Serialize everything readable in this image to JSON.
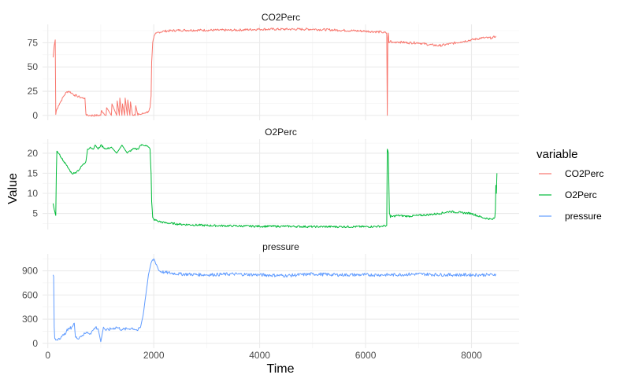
{
  "chart_data": {
    "type": "line",
    "facet": "vertical",
    "xlabel": "Time",
    "ylabel": "Value",
    "xlim": [
      -100,
      8900
    ],
    "x_ticks": [
      0,
      2000,
      4000,
      6000,
      8000
    ],
    "grid": true,
    "legend": {
      "title": "variable",
      "position": "right",
      "items": [
        {
          "label": "CO2Perc",
          "color": "#F8766D"
        },
        {
          "label": "O2Perc",
          "color": "#00BA38"
        },
        {
          "label": "pressure",
          "color": "#619CFF"
        }
      ]
    },
    "panels": [
      {
        "title": "CO2Perc",
        "color": "#F8766D",
        "ylim": [
          -5,
          94
        ],
        "y_ticks": [
          0,
          25,
          50,
          75
        ],
        "noise": 1.2,
        "x": [
          100,
          120,
          140,
          150,
          160,
          200,
          250,
          300,
          350,
          400,
          450,
          500,
          550,
          600,
          650,
          700,
          720,
          730,
          750,
          800,
          900,
          1000,
          1010,
          1100,
          1110,
          1200,
          1210,
          1300,
          1310,
          1350,
          1360,
          1400,
          1410,
          1450,
          1460,
          1500,
          1510,
          1550,
          1560,
          1600,
          1620,
          1650,
          1660,
          1700,
          1710,
          1750,
          1800,
          1850,
          1900,
          1930,
          1950,
          1960,
          1980,
          2000,
          2020,
          2050,
          2100,
          2200,
          2500,
          3000,
          3500,
          4000,
          4500,
          5000,
          5500,
          6000,
          6300,
          6400,
          6410,
          6420,
          6430,
          6440,
          6460,
          6480,
          6500,
          6600,
          6800,
          7000,
          7200,
          7400,
          7600,
          7800,
          8000,
          8200,
          8400,
          8460
        ],
        "y": [
          60,
          72,
          78,
          1,
          5,
          10,
          15,
          20,
          24,
          25,
          23,
          21,
          20,
          19,
          18,
          18,
          1,
          0,
          0,
          0,
          0,
          0,
          5,
          0,
          8,
          0,
          12,
          0,
          15,
          0,
          18,
          0,
          12,
          0,
          18,
          0,
          16,
          0,
          14,
          0,
          0,
          0,
          10,
          0,
          2,
          1,
          2,
          3,
          4,
          8,
          20,
          55,
          75,
          80,
          83,
          85,
          86,
          87,
          88,
          88,
          88,
          89,
          89,
          89,
          88,
          87,
          86,
          85,
          0,
          80,
          85,
          75,
          76,
          77,
          75,
          76,
          75,
          75,
          73,
          72,
          74,
          76,
          78,
          80,
          80,
          82
        ]
      },
      {
        "title": "O2Perc",
        "color": "#00BA38",
        "ylim": [
          1,
          23.5
        ],
        "y_ticks": [
          5,
          10,
          15,
          20
        ],
        "noise": 0.25,
        "x": [
          100,
          120,
          150,
          160,
          170,
          200,
          250,
          300,
          350,
          400,
          450,
          500,
          550,
          600,
          650,
          700,
          720,
          750,
          800,
          850,
          900,
          950,
          1000,
          1100,
          1200,
          1300,
          1400,
          1500,
          1600,
          1700,
          1750,
          1800,
          1850,
          1900,
          1930,
          1950,
          1960,
          1980,
          2000,
          2100,
          2200,
          2500,
          3000,
          3500,
          4000,
          4500,
          5000,
          5500,
          6000,
          6300,
          6400,
          6410,
          6430,
          6450,
          6470,
          6480,
          6500,
          6600,
          6800,
          7000,
          7200,
          7400,
          7600,
          7800,
          8000,
          8200,
          8400,
          8440,
          8450,
          8460,
          8470,
          8480
        ],
        "y": [
          7.5,
          6,
          4.5,
          15,
          20.5,
          20,
          19,
          18,
          17,
          16,
          15,
          15,
          15.5,
          16,
          17,
          17.5,
          18,
          21,
          21.5,
          21,
          22,
          21,
          22,
          21,
          21.5,
          20,
          22,
          20,
          21,
          21,
          22,
          22,
          22,
          21.5,
          21,
          15,
          8,
          4,
          3.5,
          3,
          2.7,
          2.3,
          2,
          1.9,
          1.8,
          1.8,
          1.7,
          1.7,
          1.7,
          1.8,
          2,
          21,
          20,
          5,
          4,
          4.5,
          4.2,
          4.5,
          4.3,
          4.5,
          4.7,
          5,
          5.5,
          5.2,
          5,
          4,
          3.5,
          4,
          6,
          12,
          10,
          15
        ]
      },
      {
        "title": "pressure",
        "color": "#619CFF",
        "ylim": [
          -60,
          1110
        ],
        "y_ticks": [
          0,
          300,
          600,
          900
        ],
        "noise": 20,
        "x": [
          100,
          110,
          120,
          130,
          150,
          200,
          250,
          300,
          350,
          400,
          450,
          500,
          520,
          550,
          600,
          650,
          700,
          750,
          800,
          850,
          900,
          950,
          1000,
          1050,
          1100,
          1200,
          1300,
          1400,
          1500,
          1600,
          1700,
          1750,
          1800,
          1850,
          1900,
          1950,
          2000,
          2050,
          2100,
          2200,
          2500,
          3000,
          3500,
          4000,
          4500,
          5000,
          5500,
          6000,
          6500,
          7000,
          7500,
          8000,
          8200,
          8400,
          8460
        ],
        "y": [
          850,
          830,
          200,
          60,
          40,
          60,
          80,
          100,
          150,
          180,
          200,
          250,
          80,
          60,
          80,
          100,
          120,
          140,
          120,
          160,
          200,
          180,
          20,
          200,
          160,
          180,
          200,
          170,
          180,
          190,
          160,
          200,
          350,
          600,
          850,
          1000,
          1050,
          980,
          900,
          880,
          860,
          850,
          860,
          850,
          840,
          860,
          850,
          850,
          850,
          860,
          850,
          850,
          850,
          850,
          860
        ]
      }
    ]
  }
}
